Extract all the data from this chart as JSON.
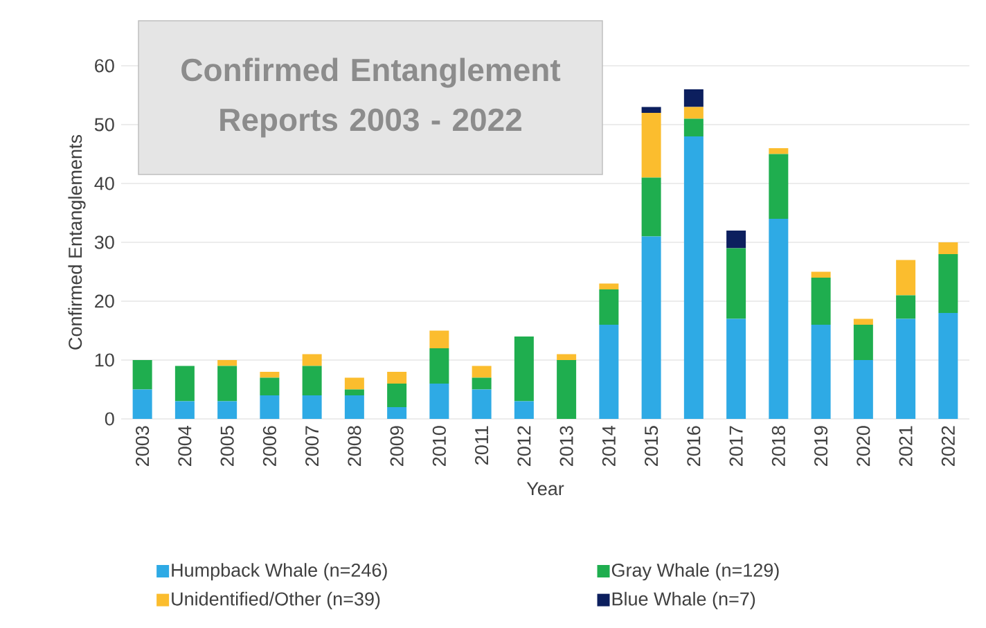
{
  "chart_data": {
    "type": "bar",
    "stacked": true,
    "title": "Confirmed Entanglement Reports 2003 - 2022",
    "xlabel": "Year",
    "ylabel": "Confirmed Entanglements",
    "categories": [
      "2003",
      "2004",
      "2005",
      "2006",
      "2007",
      "2008",
      "2009",
      "2010",
      "2011",
      "2012",
      "2013",
      "2014",
      "2015",
      "2016",
      "2017",
      "2018",
      "2019",
      "2020",
      "2021",
      "2022"
    ],
    "series": [
      {
        "name": "Humpback Whale (n=246)",
        "color": "#2eaae5",
        "values": [
          5,
          3,
          3,
          4,
          4,
          4,
          2,
          6,
          5,
          3,
          0,
          16,
          31,
          48,
          17,
          34,
          16,
          10,
          17,
          18
        ]
      },
      {
        "name": "Gray Whale (n=129)",
        "color": "#1fae4f",
        "values": [
          5,
          6,
          6,
          3,
          5,
          1,
          4,
          6,
          2,
          11,
          10,
          6,
          10,
          3,
          12,
          11,
          8,
          6,
          4,
          10
        ]
      },
      {
        "name": "Unidentified/Other (n=39)",
        "color": "#fbbd2e",
        "values": [
          0,
          0,
          1,
          1,
          2,
          2,
          2,
          3,
          2,
          0,
          1,
          1,
          11,
          2,
          0,
          1,
          1,
          1,
          6,
          2
        ]
      },
      {
        "name": "Blue Whale (n=7)",
        "color": "#0c1f5e",
        "values": [
          0,
          0,
          0,
          0,
          0,
          0,
          0,
          0,
          0,
          0,
          0,
          0,
          1,
          3,
          3,
          0,
          0,
          0,
          0,
          0
        ]
      }
    ],
    "ylim": [
      0,
      60
    ],
    "yticks": [
      0,
      10,
      20,
      30,
      40,
      50,
      60
    ],
    "grid": "y",
    "legend": "bottom"
  }
}
